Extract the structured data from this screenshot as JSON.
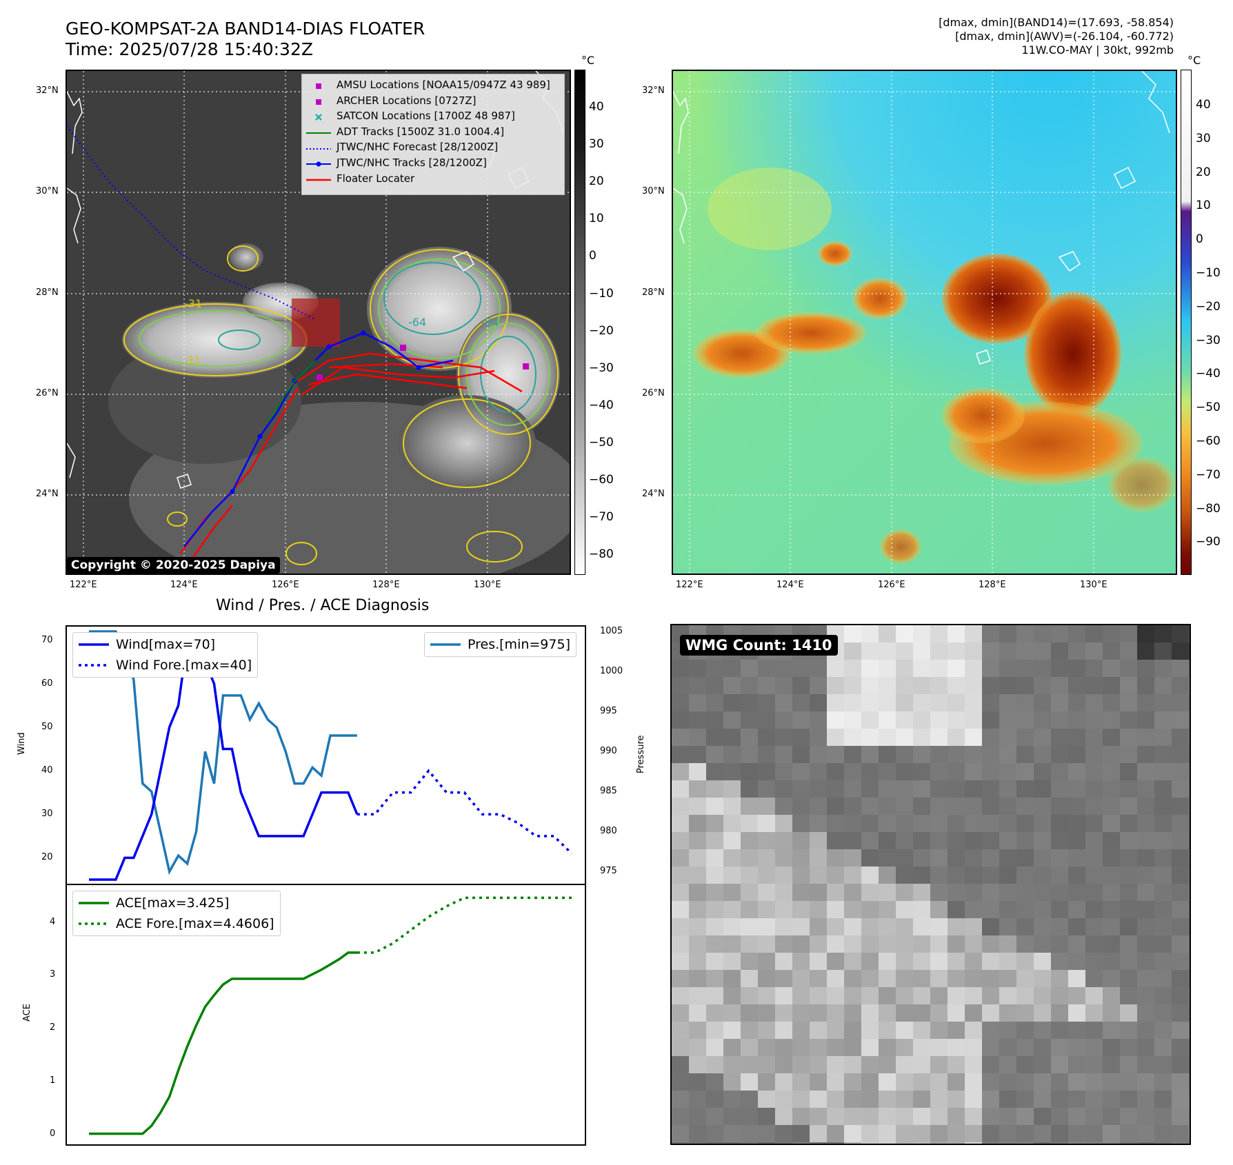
{
  "header": {
    "title_line1": "GEO-KOMPSAT-2A BAND14-DIAS FLOATER",
    "title_line2": "Time: 2025/07/28 15:40:32Z",
    "stats_line1": "[dmax, dmin](BAND14)=(17.693, -58.854)",
    "stats_line2": "[dmax, dmin](AWV)=(-26.104, -60.772)",
    "stats_line3": "11W.CO-MAY | 30kt, 992mb"
  },
  "map_ir": {
    "lat_labels": [
      "32°N",
      "30°N",
      "28°N",
      "26°N",
      "24°N"
    ],
    "lon_labels": [
      "122°E",
      "124°E",
      "126°E",
      "128°E",
      "130°E"
    ],
    "contour_labels": [
      "-31",
      "-31",
      "-64",
      "-54"
    ],
    "colorbar_unit": "°C",
    "colorbar_ticks": [
      "40",
      "30",
      "20",
      "10",
      "0",
      "−10",
      "−20",
      "−30",
      "−40",
      "−50",
      "−60",
      "−70",
      "−80"
    ],
    "legend": [
      {
        "label": "AMSU Locations [NOAA15/0947Z 43 989]",
        "color": "#c000c0",
        "marker": "square"
      },
      {
        "label": "ARCHER Locations [0727Z]",
        "color": "#c000c0",
        "marker": "square"
      },
      {
        "label": "SATCON Locations [1700Z 48 987]",
        "color": "#20b0b0",
        "marker": "x"
      },
      {
        "label": "ADT Tracks [1500Z 31.0 1004.4]",
        "color": "#008000",
        "marker": "line"
      },
      {
        "label": "JTWC/NHC Forecast [28/1200Z]",
        "color": "#0000ff",
        "marker": "dotted"
      },
      {
        "label": "JTWC/NHC Tracks [28/1200Z]",
        "color": "#0000ff",
        "marker": "line-dot"
      },
      {
        "label": "Floater Locater",
        "color": "#ff0000",
        "marker": "line"
      }
    ],
    "copyright": "Copyright © 2020-2025 Dapiya"
  },
  "map_wv": {
    "lat_labels": [
      "32°N",
      "30°N",
      "28°N",
      "26°N",
      "24°N"
    ],
    "lon_labels": [
      "122°E",
      "124°E",
      "126°E",
      "128°E",
      "130°E"
    ],
    "colorbar_unit": "°C",
    "colorbar_ticks": [
      "40",
      "30",
      "20",
      "10",
      "0",
      "−10",
      "−20",
      "−30",
      "−40",
      "−50",
      "−60",
      "−70",
      "−80",
      "−90"
    ]
  },
  "wmg": {
    "label": "WMG Count: 1410"
  },
  "chart_data": [
    {
      "type": "line",
      "title": "Wind / Pres. / ACE Diagnosis",
      "ylabel": "Wind",
      "y2label": "Pressure",
      "ylim": [
        15,
        72
      ],
      "y2lim": [
        974,
        1005
      ],
      "yticks": [
        "70",
        "60",
        "50",
        "40",
        "30",
        "20"
      ],
      "y2ticks": [
        "1005",
        "1000",
        "995",
        "990",
        "985",
        "980",
        "975"
      ],
      "series": [
        {
          "name": "Wind[max=70]",
          "color": "#0000ee",
          "style": "solid",
          "x": [
            0,
            2,
            3,
            4,
            5,
            6,
            7,
            8,
            9,
            10,
            11,
            12,
            13,
            14,
            15,
            16,
            17,
            18,
            19,
            20,
            21,
            22,
            23,
            24,
            25,
            26,
            27,
            28,
            29,
            30
          ],
          "y": [
            15,
            15,
            15,
            20,
            20,
            25,
            30,
            40,
            50,
            55,
            70,
            65,
            65,
            60,
            45,
            45,
            35,
            30,
            25,
            25,
            25,
            25,
            25,
            25,
            30,
            35,
            35,
            35,
            35,
            30
          ]
        },
        {
          "name": "Wind Fore.[max=40]",
          "color": "#0000ee",
          "style": "dotted",
          "x": [
            30,
            32,
            34,
            36,
            38,
            40,
            42,
            44,
            46,
            48,
            50,
            52,
            54
          ],
          "y": [
            30,
            30,
            35,
            35,
            40,
            35,
            35,
            30,
            30,
            28,
            25,
            25,
            21
          ]
        },
        {
          "name": "Pres.[min=975]",
          "color": "#1f77b4",
          "style": "solid",
          "axis": "right",
          "x": [
            0,
            2,
            3,
            4,
            5,
            6,
            7,
            8,
            9,
            10,
            11,
            12,
            13,
            14,
            15,
            16,
            17,
            18,
            19,
            20,
            21,
            22,
            23,
            24,
            25,
            26,
            27,
            28,
            29,
            30
          ],
          "y": [
            1005,
            1005,
            1005,
            1002,
            999,
            986,
            985,
            980,
            975,
            977,
            976,
            980,
            990,
            986,
            997,
            997,
            997,
            994,
            996,
            994,
            993,
            990,
            986,
            986,
            988,
            987,
            992,
            992,
            992,
            992
          ]
        }
      ]
    },
    {
      "type": "line",
      "ylabel": "ACE",
      "ylim": [
        -0.2,
        4.7
      ],
      "yticks": [
        "4",
        "3",
        "2",
        "1",
        "0"
      ],
      "series": [
        {
          "name": "ACE[max=3.425]",
          "color": "#008000",
          "style": "solid",
          "x": [
            0,
            2,
            4,
            6,
            7,
            8,
            9,
            10,
            11,
            12,
            13,
            14,
            15,
            16,
            17,
            18,
            20,
            22,
            24,
            26,
            28,
            29,
            30
          ],
          "y": [
            0,
            0,
            0,
            0,
            0.15,
            0.4,
            0.7,
            1.2,
            1.65,
            2.05,
            2.4,
            2.62,
            2.82,
            2.93,
            2.93,
            2.93,
            2.93,
            2.93,
            2.93,
            3.1,
            3.3,
            3.425,
            3.425
          ]
        },
        {
          "name": "ACE Fore.[max=4.4606]",
          "color": "#008000",
          "style": "dotted",
          "x": [
            30,
            32,
            34,
            36,
            38,
            40,
            42,
            44,
            46,
            48,
            50,
            52,
            54
          ],
          "y": [
            3.425,
            3.425,
            3.6,
            3.85,
            4.1,
            4.3,
            4.46,
            4.46,
            4.46,
            4.46,
            4.46,
            4.46,
            4.46
          ]
        }
      ]
    }
  ]
}
